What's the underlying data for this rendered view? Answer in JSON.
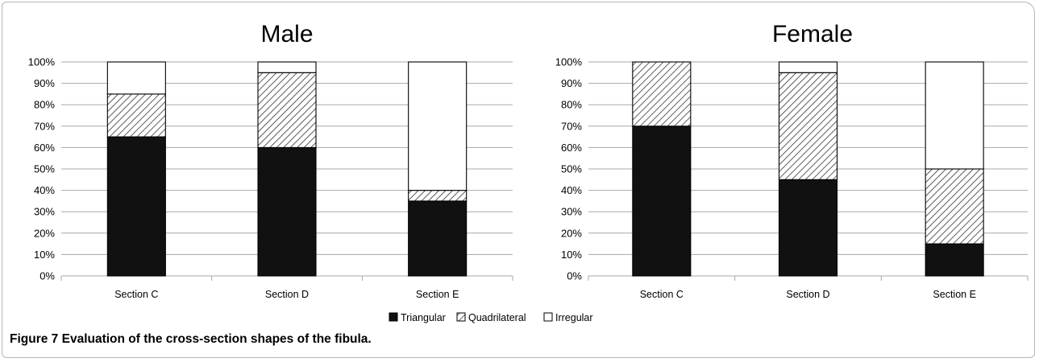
{
  "caption": {
    "label": "Figure 7",
    "text": "Evaluation of the cross-section shapes of the fibula."
  },
  "colors": {
    "triangular": "#111111",
    "quadrilateral_hatch": "#333333",
    "irregular": "#ffffff",
    "grid": "#a8a8a8",
    "bar_outline": "#000000"
  },
  "legend": {
    "items": [
      {
        "label": "Triangular",
        "pattern": "solid"
      },
      {
        "label": "Quadrilateral",
        "pattern": "hatch"
      },
      {
        "label": "Irregular",
        "pattern": "none"
      }
    ],
    "placement": "bottom-center"
  },
  "chart_data": [
    {
      "type": "bar",
      "stacked": true,
      "title": "Male",
      "categories": [
        "Section C",
        "Section D",
        "Section E"
      ],
      "yticks": [
        "0%",
        "10%",
        "20%",
        "30%",
        "40%",
        "50%",
        "60%",
        "70%",
        "80%",
        "90%",
        "100%"
      ],
      "ylim": [
        0,
        100
      ],
      "grid": true,
      "series": [
        {
          "name": "Triangular",
          "values": [
            65,
            60,
            35
          ]
        },
        {
          "name": "Quadrilateral",
          "values": [
            20,
            35,
            5
          ]
        },
        {
          "name": "Irregular",
          "values": [
            15,
            5,
            60
          ]
        }
      ]
    },
    {
      "type": "bar",
      "stacked": true,
      "title": "Female",
      "categories": [
        "Section C",
        "Section D",
        "Section E"
      ],
      "yticks": [
        "0%",
        "10%",
        "20%",
        "30%",
        "40%",
        "50%",
        "60%",
        "70%",
        "80%",
        "90%",
        "100%"
      ],
      "ylim": [
        0,
        100
      ],
      "grid": true,
      "series": [
        {
          "name": "Triangular",
          "values": [
            70,
            45,
            15
          ]
        },
        {
          "name": "Quadrilateral",
          "values": [
            30,
            50,
            35
          ]
        },
        {
          "name": "Irregular",
          "values": [
            0,
            5,
            50
          ]
        }
      ]
    }
  ]
}
